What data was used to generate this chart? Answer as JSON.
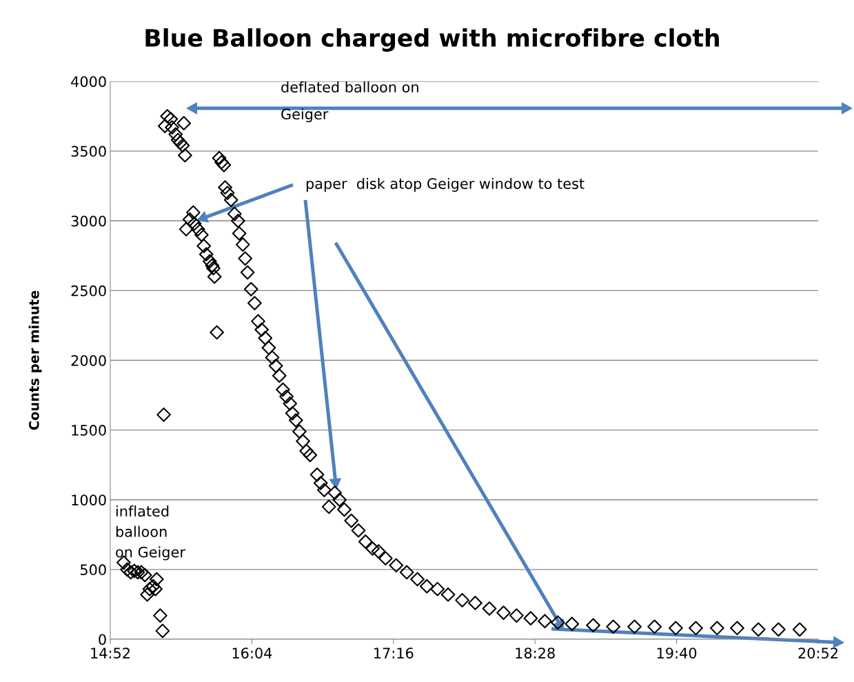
{
  "chart_data": {
    "type": "scatter",
    "title": "Blue Balloon charged with microfibre cloth",
    "ylabel": "Counts per minute",
    "x": [
      14.98,
      15.01,
      15.04,
      15.07,
      15.1,
      15.13,
      15.16,
      15.18,
      15.2,
      15.23,
      15.25,
      15.26,
      15.29,
      15.31,
      15.32,
      15.33,
      15.35,
      15.38,
      15.39,
      15.42,
      15.44,
      15.46,
      15.48,
      15.49,
      15.5,
      15.51,
      15.54,
      15.57,
      15.58,
      15.61,
      15.64,
      15.66,
      15.68,
      15.71,
      15.73,
      15.74,
      15.75,
      15.77,
      15.79,
      15.81,
      15.83,
      15.84,
      15.86,
      15.89,
      15.92,
      15.95,
      15.96,
      15.99,
      16.01,
      16.03,
      16.06,
      16.09,
      16.12,
      16.15,
      16.18,
      16.21,
      16.24,
      16.27,
      16.3,
      16.33,
      16.36,
      16.39,
      16.41,
      16.44,
      16.47,
      16.5,
      16.53,
      16.56,
      16.62,
      16.65,
      16.68,
      16.72,
      16.77,
      16.81,
      16.85,
      16.91,
      16.97,
      17.03,
      17.09,
      17.14,
      17.2,
      17.29,
      17.38,
      17.47,
      17.55,
      17.64,
      17.73,
      17.85,
      17.96,
      18.08,
      18.2,
      18.31,
      18.43,
      18.55,
      18.66,
      18.78,
      18.96,
      19.13,
      19.31,
      19.48,
      19.66,
      19.83,
      20.01,
      20.18,
      20.36,
      20.53,
      20.71
    ],
    "values": [
      550,
      500,
      480,
      490,
      480,
      480,
      460,
      320,
      360,
      380,
      360,
      430,
      170,
      60,
      1610,
      3680,
      3750,
      3730,
      3670,
      3620,
      3580,
      3560,
      3540,
      3700,
      3470,
      2940,
      3010,
      3060,
      2980,
      2940,
      2900,
      2820,
      2760,
      2710,
      2680,
      2660,
      2600,
      2200,
      3450,
      3420,
      3400,
      3240,
      3200,
      3150,
      3050,
      3000,
      2910,
      2830,
      2730,
      2630,
      2510,
      2410,
      2280,
      2220,
      2160,
      2090,
      2020,
      1960,
      1890,
      1790,
      1740,
      1690,
      1620,
      1570,
      1490,
      1420,
      1350,
      1320,
      1180,
      1120,
      1070,
      950,
      1050,
      1000,
      930,
      850,
      780,
      700,
      650,
      630,
      580,
      530,
      480,
      430,
      380,
      360,
      320,
      280,
      260,
      220,
      190,
      170,
      150,
      130,
      120,
      110,
      100,
      90,
      90,
      90,
      80,
      80,
      80,
      80,
      70,
      70,
      70
    ],
    "marker": "diamond",
    "color": "#000000",
    "xlim": [
      14.8667,
      20.8667
    ],
    "xticks": [
      {
        "value": 14.8667,
        "label": "14:52"
      },
      {
        "value": 16.0667,
        "label": "16:04"
      },
      {
        "value": 17.2667,
        "label": "17:16"
      },
      {
        "value": 18.4667,
        "label": "18:28"
      },
      {
        "value": 19.6667,
        "label": "19:40"
      },
      {
        "value": 20.8667,
        "label": "20:52"
      }
    ],
    "ylim": [
      0,
      4000
    ],
    "yticks": [
      0,
      500,
      1000,
      1500,
      2000,
      2500,
      3000,
      3500,
      4000
    ],
    "grid": "y",
    "annotations": [
      "deflated balloon on\nGeiger",
      "paper  disk atop Geiger window to test",
      "inflated\nballoon\non Geiger"
    ]
  }
}
